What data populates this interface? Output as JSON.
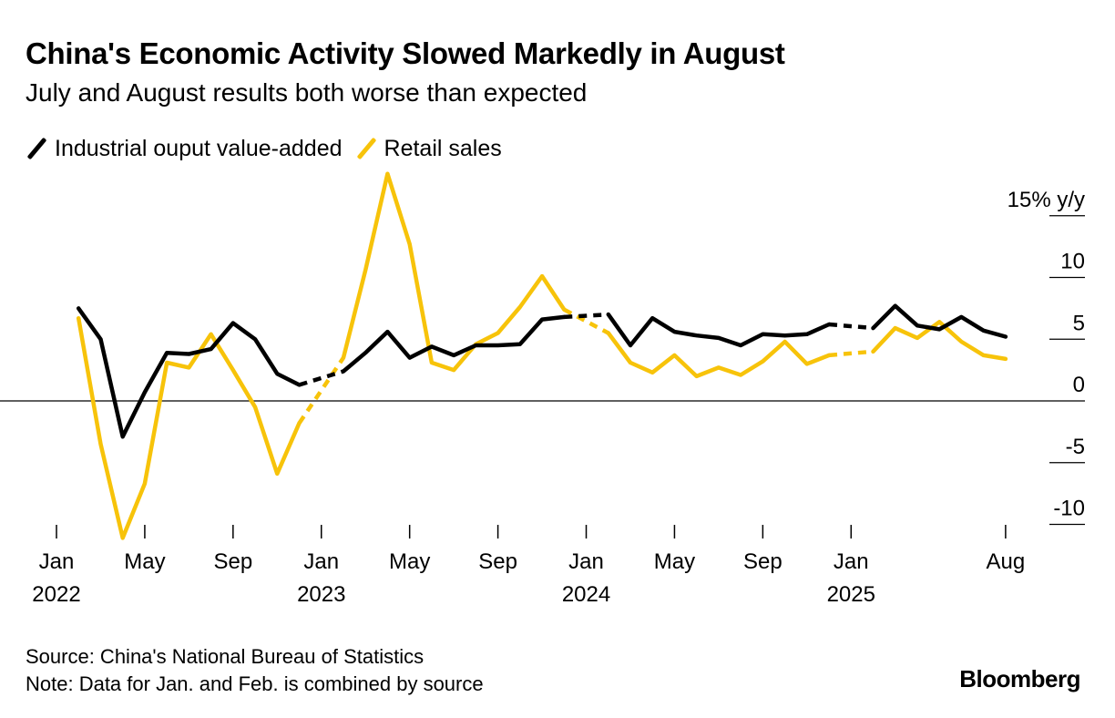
{
  "header": {
    "title": "China's Economic Activity Slowed Markedly in August",
    "subtitle": "July and August results both worse than expected"
  },
  "legend": [
    {
      "label": "Industrial ouput value-added",
      "color": "#000000"
    },
    {
      "label": "Retail sales",
      "color": "#F7C30A"
    }
  ],
  "footer": {
    "source": "Source: China's National Bureau of Statistics",
    "note": "Note: Data for Jan. and Feb. is combined by source",
    "brand": "Bloomberg"
  },
  "chart_data": {
    "type": "line",
    "title": "China's Economic Activity Slowed Markedly in August",
    "subtitle": "July and August results both worse than expected",
    "ylabel": "15% y/y",
    "ylim": [
      -10,
      15
    ],
    "yticks": [
      {
        "value": 15,
        "label": "15% y/y"
      },
      {
        "value": 10,
        "label": "10"
      },
      {
        "value": 5,
        "label": "5"
      },
      {
        "value": 0,
        "label": "0"
      },
      {
        "value": -5,
        "label": "-5"
      },
      {
        "value": -10,
        "label": "-10"
      }
    ],
    "xticks": [
      {
        "month": 0,
        "label": "Jan",
        "year": "2022"
      },
      {
        "month": 4,
        "label": "May",
        "year": ""
      },
      {
        "month": 8,
        "label": "Sep",
        "year": ""
      },
      {
        "month": 12,
        "label": "Jan",
        "year": "2023"
      },
      {
        "month": 16,
        "label": "May",
        "year": ""
      },
      {
        "month": 20,
        "label": "Sep",
        "year": ""
      },
      {
        "month": 24,
        "label": "Jan",
        "year": "2024"
      },
      {
        "month": 28,
        "label": "May",
        "year": ""
      },
      {
        "month": 32,
        "label": "Sep",
        "year": ""
      },
      {
        "month": 36,
        "label": "Jan",
        "year": "2025"
      },
      {
        "month": 43,
        "label": "Aug",
        "year": ""
      }
    ],
    "x_range_months": [
      0,
      43
    ],
    "note": "Jan and Feb combined; dashed segments bridge Dec to Feb",
    "series": [
      {
        "name": "Industrial ouput value-added",
        "color": "#000000",
        "points": [
          [
            1,
            7.5
          ],
          [
            2,
            5.0
          ],
          [
            3,
            -2.9
          ],
          [
            4,
            0.7
          ],
          [
            5,
            3.9
          ],
          [
            6,
            3.8
          ],
          [
            7,
            4.2
          ],
          [
            8,
            6.3
          ],
          [
            9,
            5.0
          ],
          [
            10,
            2.2
          ],
          [
            11,
            1.3
          ],
          [
            13,
            2.4
          ],
          [
            14,
            3.9
          ],
          [
            15,
            5.6
          ],
          [
            16,
            3.5
          ],
          [
            17,
            4.4
          ],
          [
            18,
            3.7
          ],
          [
            19,
            4.5
          ],
          [
            20,
            4.5
          ],
          [
            21,
            4.6
          ],
          [
            22,
            6.6
          ],
          [
            23,
            6.8
          ],
          [
            25,
            7.0
          ],
          [
            26,
            4.5
          ],
          [
            27,
            6.7
          ],
          [
            28,
            5.6
          ],
          [
            29,
            5.3
          ],
          [
            30,
            5.1
          ],
          [
            31,
            4.5
          ],
          [
            32,
            5.4
          ],
          [
            33,
            5.3
          ],
          [
            34,
            5.4
          ],
          [
            35,
            6.2
          ],
          [
            37,
            5.9
          ],
          [
            38,
            7.7
          ],
          [
            39,
            6.1
          ],
          [
            40,
            5.8
          ],
          [
            41,
            6.8
          ],
          [
            42,
            5.7
          ],
          [
            43,
            5.2
          ]
        ]
      },
      {
        "name": "Retail sales",
        "color": "#F7C30A",
        "points": [
          [
            1,
            6.7
          ],
          [
            2,
            -3.5
          ],
          [
            3,
            -11.1
          ],
          [
            4,
            -6.7
          ],
          [
            5,
            3.1
          ],
          [
            6,
            2.7
          ],
          [
            7,
            5.4
          ],
          [
            8,
            2.5
          ],
          [
            9,
            -0.5
          ],
          [
            10,
            -5.9
          ],
          [
            11,
            -1.8
          ],
          [
            13,
            3.5
          ],
          [
            14,
            10.6
          ],
          [
            15,
            18.4
          ],
          [
            16,
            12.7
          ],
          [
            17,
            3.1
          ],
          [
            18,
            2.5
          ],
          [
            19,
            4.6
          ],
          [
            20,
            5.5
          ],
          [
            21,
            7.6
          ],
          [
            22,
            10.1
          ],
          [
            23,
            7.4
          ],
          [
            25,
            5.5
          ],
          [
            26,
            3.1
          ],
          [
            27,
            2.3
          ],
          [
            28,
            3.7
          ],
          [
            29,
            2.0
          ],
          [
            30,
            2.7
          ],
          [
            31,
            2.1
          ],
          [
            32,
            3.2
          ],
          [
            33,
            4.8
          ],
          [
            34,
            3.0
          ],
          [
            35,
            3.7
          ],
          [
            37,
            4.0
          ],
          [
            38,
            5.9
          ],
          [
            39,
            5.1
          ],
          [
            40,
            6.4
          ],
          [
            41,
            4.8
          ],
          [
            42,
            3.7
          ],
          [
            43,
            3.4
          ]
        ]
      }
    ]
  }
}
